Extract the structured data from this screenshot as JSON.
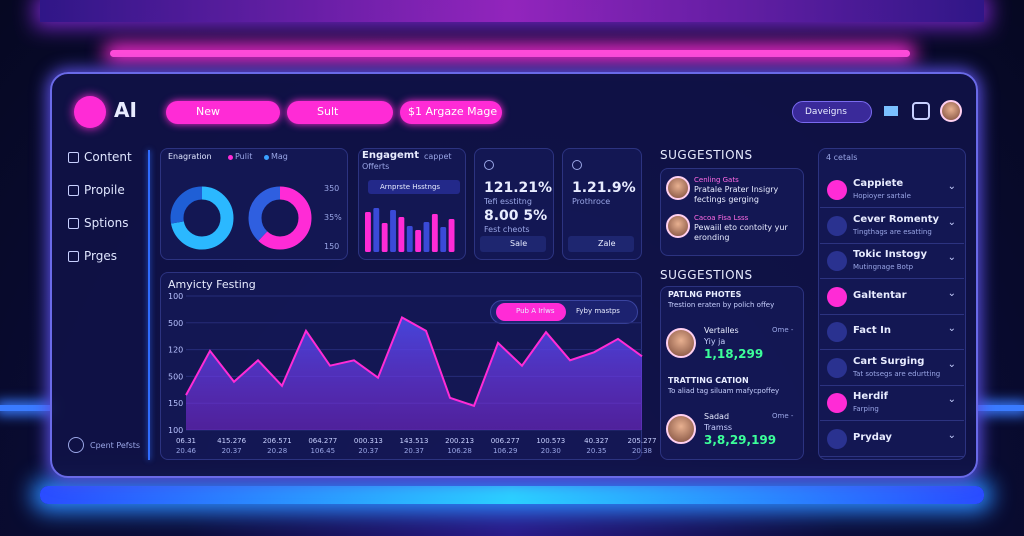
{
  "logo": "AI",
  "top_buttons": [
    "New",
    "Sult",
    "$1  Argaze Mage"
  ],
  "top_right_button": "Daveigns",
  "sidebar": {
    "items": [
      "Content",
      "Propile",
      "Sptions",
      "Prges"
    ],
    "footer": "Cpent Pefsts"
  },
  "donut_card": {
    "title": "Enagration",
    "legend": [
      {
        "name": "Pulit",
        "color": "#ff2bd6"
      },
      {
        "name": "Mag",
        "color": "#3aa0ff"
      }
    ],
    "labels": [
      "350",
      "35%",
      "150"
    ],
    "donuts": [
      {
        "values": [
          72,
          28
        ],
        "colors": [
          "#2bb8ff",
          "#1f5fd6"
        ]
      },
      {
        "values": [
          62,
          38
        ],
        "colors": [
          "#ff2bd6",
          "#2f5fe0"
        ]
      }
    ]
  },
  "engagement_card": {
    "title": "Engagemt",
    "tag": "cappet",
    "subtitle": "Offerts",
    "chip": "Arnprste Hsstngs",
    "bars": {
      "values": [
        80,
        88,
        58,
        84,
        70,
        52,
        44,
        60,
        76,
        50,
        66
      ],
      "ylim": [
        0,
        100
      ],
      "colors": [
        "#ff2bd6",
        "#3a4ad8"
      ]
    }
  },
  "stat_cards": [
    {
      "rows": [
        {
          "value": "121.21%",
          "caption": "Tefi esstitng"
        },
        {
          "value": "8.00 5%",
          "caption": "Fest cheots"
        }
      ],
      "button": "Sale"
    },
    {
      "rows": [
        {
          "value": "1.21.9%",
          "caption": "Prothroce"
        }
      ],
      "button": "Zale"
    }
  ],
  "activity_chart": {
    "title": "Amyicty Festing",
    "toggle": [
      "Pub A Irlws",
      "Fyby mastps"
    ],
    "y_labels": [
      "100",
      "500",
      "120",
      "500",
      "150",
      "100"
    ],
    "x_labels": [
      {
        "top": "06.31",
        "bottom": "20.46"
      },
      {
        "top": "415.276",
        "bottom": "20.37"
      },
      {
        "top": "206.571",
        "bottom": "20.28"
      },
      {
        "top": "064.277",
        "bottom": "106.45"
      },
      {
        "top": "000.313",
        "bottom": "20.37"
      },
      {
        "top": "143.513",
        "bottom": "20.37"
      },
      {
        "top": "200.213",
        "bottom": "106.28"
      },
      {
        "top": "006.277",
        "bottom": "106.29"
      },
      {
        "top": "100.573",
        "bottom": "20.30"
      },
      {
        "top": "40.327",
        "bottom": "20.35"
      },
      {
        "top": "205.277",
        "bottom": "20.38"
      }
    ],
    "values": [
      26,
      59,
      36,
      52,
      33,
      74,
      48,
      52,
      39,
      84,
      74,
      24,
      18,
      65,
      48,
      73,
      52,
      58,
      68,
      55
    ],
    "ylim": [
      0,
      100
    ],
    "color": "#ff2bd6"
  },
  "suggestions": {
    "title": "SUGGESTIONS",
    "items": [
      {
        "title": "Cenling Gats",
        "text": "Pratale Prater Insigry fectings gerging"
      },
      {
        "title": "Cacoa Fisa Lsss",
        "text": "Pewaiil eto contoity yur eronding"
      }
    ]
  },
  "suggestions_2": {
    "title": "SUGGESTIONS",
    "sections": [
      {
        "heading": "PATLNG PHOTES",
        "text": "Trestion eraten by polich offey",
        "name": "Vertalles",
        "role": "Yiy ja",
        "amount": "1,18,299",
        "meta": "Ome -"
      },
      {
        "heading": "TRATTING CATION",
        "text": "To aliad tag siluam mafycpoffey",
        "name": "Sadad",
        "role": "Tramss",
        "amount": "3,8,29,199",
        "meta": "Ome -"
      }
    ]
  },
  "right_list": {
    "header": "4 cetals",
    "items": [
      {
        "label": "Cappiete",
        "sub": "Hopioyer sartale"
      },
      {
        "label": "Cever Romenty",
        "sub": "Tingthags are esatting"
      },
      {
        "label": "Tokic Instogy",
        "sub": "Mutingnage Botp"
      },
      {
        "label": "Galtentar"
      },
      {
        "label": "Fact In"
      },
      {
        "label": "Cart Surging",
        "sub": "Tat sotsegs are edurtting"
      },
      {
        "label": "Herdif",
        "sub": "Farping"
      },
      {
        "label": "Pryday"
      }
    ]
  }
}
